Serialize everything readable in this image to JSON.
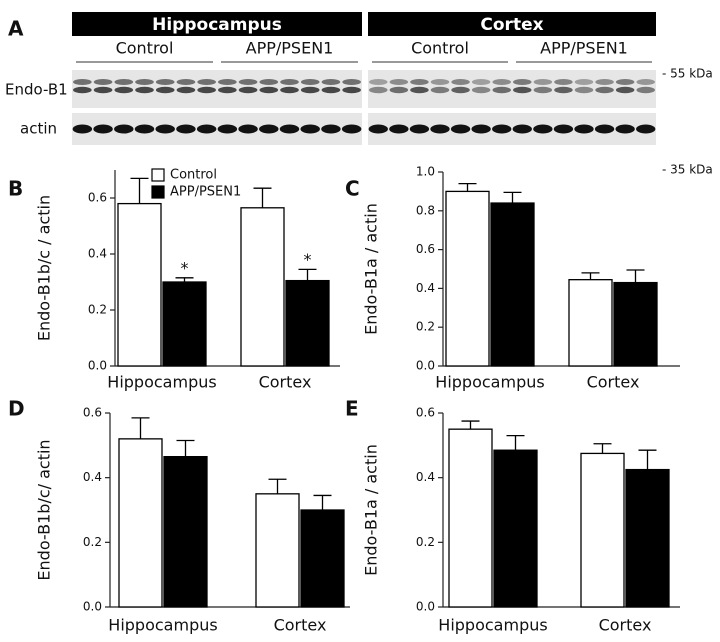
{
  "blot": {
    "panel": "A",
    "regions": [
      {
        "title": "Hippocampus",
        "groups": [
          "Control",
          "APP/PSEN1"
        ]
      },
      {
        "title": "Cortex",
        "groups": [
          "Control",
          "APP/PSEN1"
        ]
      }
    ],
    "rows": [
      "Endo-B1",
      "actin"
    ],
    "markers": [
      "- 55 kDa",
      "- 35 kDa"
    ]
  },
  "chart_data": [
    {
      "type": "bar",
      "panel": "B",
      "ylabel": "Endo-B1b/c / actin",
      "categories": [
        "Hippocampus",
        "Cortex"
      ],
      "series": [
        {
          "name": "Control",
          "color": "#ffffff",
          "values": [
            0.58,
            0.565
          ],
          "errors": [
            0.09,
            0.07
          ]
        },
        {
          "name": "APP/PSEN1",
          "color": "#000000",
          "values": [
            0.3,
            0.305
          ],
          "errors": [
            0.015,
            0.04
          ],
          "significance": [
            "*",
            "*"
          ]
        }
      ],
      "ylim": [
        0,
        0.7
      ],
      "yticks": [
        {
          "value": 0,
          "label": "0.0"
        },
        0.2,
        0.4,
        0.6
      ],
      "legend": "top"
    },
    {
      "type": "bar",
      "panel": "C",
      "ylabel": "Endo-B1a / actin",
      "categories": [
        "Hippocampus",
        "Cortex"
      ],
      "series": [
        {
          "color": "#ffffff",
          "values": [
            0.9,
            0.445
          ],
          "errors": [
            0.04,
            0.035
          ]
        },
        {
          "color": "#000000",
          "values": [
            0.84,
            0.43
          ],
          "errors": [
            0.055,
            0.065
          ]
        }
      ],
      "ylim": [
        0,
        1.0
      ],
      "yticks": [
        {
          "value": 0,
          "label": "0.0"
        },
        0.2,
        0.4,
        0.6,
        0.8,
        {
          "value": 1,
          "label": "1.0"
        }
      ]
    },
    {
      "type": "bar",
      "panel": "D",
      "ylabel": "Endo-B1b/c/ actin",
      "categories": [
        "Hippocampus",
        "Cortex"
      ],
      "series": [
        {
          "color": "#ffffff",
          "values": [
            0.52,
            0.35
          ],
          "errors": [
            0.065,
            0.045
          ]
        },
        {
          "color": "#000000",
          "values": [
            0.465,
            0.3
          ],
          "errors": [
            0.05,
            0.045
          ]
        }
      ],
      "ylim": [
        0,
        0.6
      ],
      "yticks": [
        {
          "value": 0,
          "label": "0.0"
        },
        0.2,
        0.4,
        0.6
      ]
    },
    {
      "type": "bar",
      "panel": "E",
      "ylabel": "Endo-B1a / actin",
      "categories": [
        "Hippocampus",
        "Cortex"
      ],
      "series": [
        {
          "color": "#ffffff",
          "values": [
            0.55,
            0.475
          ],
          "errors": [
            0.025,
            0.03
          ]
        },
        {
          "color": "#000000",
          "values": [
            0.485,
            0.425
          ],
          "errors": [
            0.045,
            0.06
          ]
        }
      ],
      "ylim": [
        0,
        0.6
      ],
      "yticks": [
        {
          "value": 0,
          "label": "0.0"
        },
        0.2,
        0.4,
        0.6
      ]
    }
  ]
}
